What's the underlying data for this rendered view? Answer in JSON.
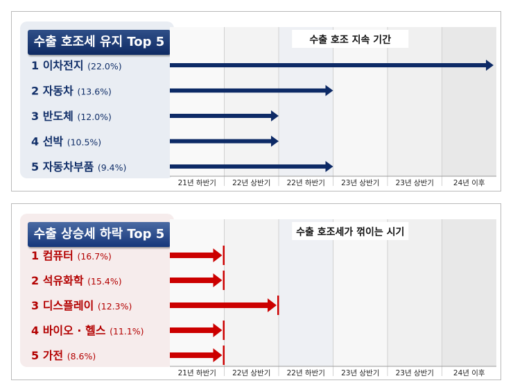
{
  "colors": {
    "blue_arrow": "#0d2a66",
    "red_arrow": "#cc0000",
    "blue_text": "#102e68",
    "red_text": "#b30000"
  },
  "panels": [
    {
      "heading": "수출 호조세 유지 Top 5",
      "chart_title": "수출 호조 지속 기간"
    },
    {
      "heading": "수출 상승세 하락 Top 5",
      "chart_title": "수출 호조세가 꺾이는 시기"
    }
  ],
  "chart_data": [
    {
      "type": "bar",
      "title": "수출 호조 지속 기간",
      "categories": [
        "21년 하반기",
        "22년 상반기",
        "22년 하반기",
        "23년 상반기",
        "23년 상반기",
        "24년 이후"
      ],
      "items": [
        {
          "rank": "1",
          "name": "이차전지",
          "share": "(22.0%)",
          "end_period": 6
        },
        {
          "rank": "2",
          "name": "자동차",
          "share": "(13.6%)",
          "end_period": 3
        },
        {
          "rank": "3",
          "name": "반도체",
          "share": "(12.0%)",
          "end_period": 2
        },
        {
          "rank": "4",
          "name": "선박",
          "share": "(10.5%)",
          "end_period": 2
        },
        {
          "rank": "5",
          "name": "자동차부품",
          "share": "(9.4%)",
          "end_period": 3
        }
      ]
    },
    {
      "type": "bar",
      "title": "수출 호조세가 꺾이는 시기",
      "categories": [
        "21년 하반기",
        "22년 상반기",
        "22년 하반기",
        "23년 상반기",
        "23년 상반기",
        "24년 이후"
      ],
      "items": [
        {
          "rank": "1",
          "name": "컴퓨터",
          "share": "(16.7%)",
          "end_period": 1
        },
        {
          "rank": "2",
          "name": "석유화학",
          "share": "(15.4%)",
          "end_period": 1
        },
        {
          "rank": "3",
          "name": "디스플레이",
          "share": "(12.3%)",
          "end_period": 2
        },
        {
          "rank": "4",
          "name": "바이오 · 헬스",
          "share": "(11.1%)",
          "end_period": 1
        },
        {
          "rank": "5",
          "name": "가전",
          "share": "(8.6%)",
          "end_period": 1
        }
      ]
    }
  ]
}
